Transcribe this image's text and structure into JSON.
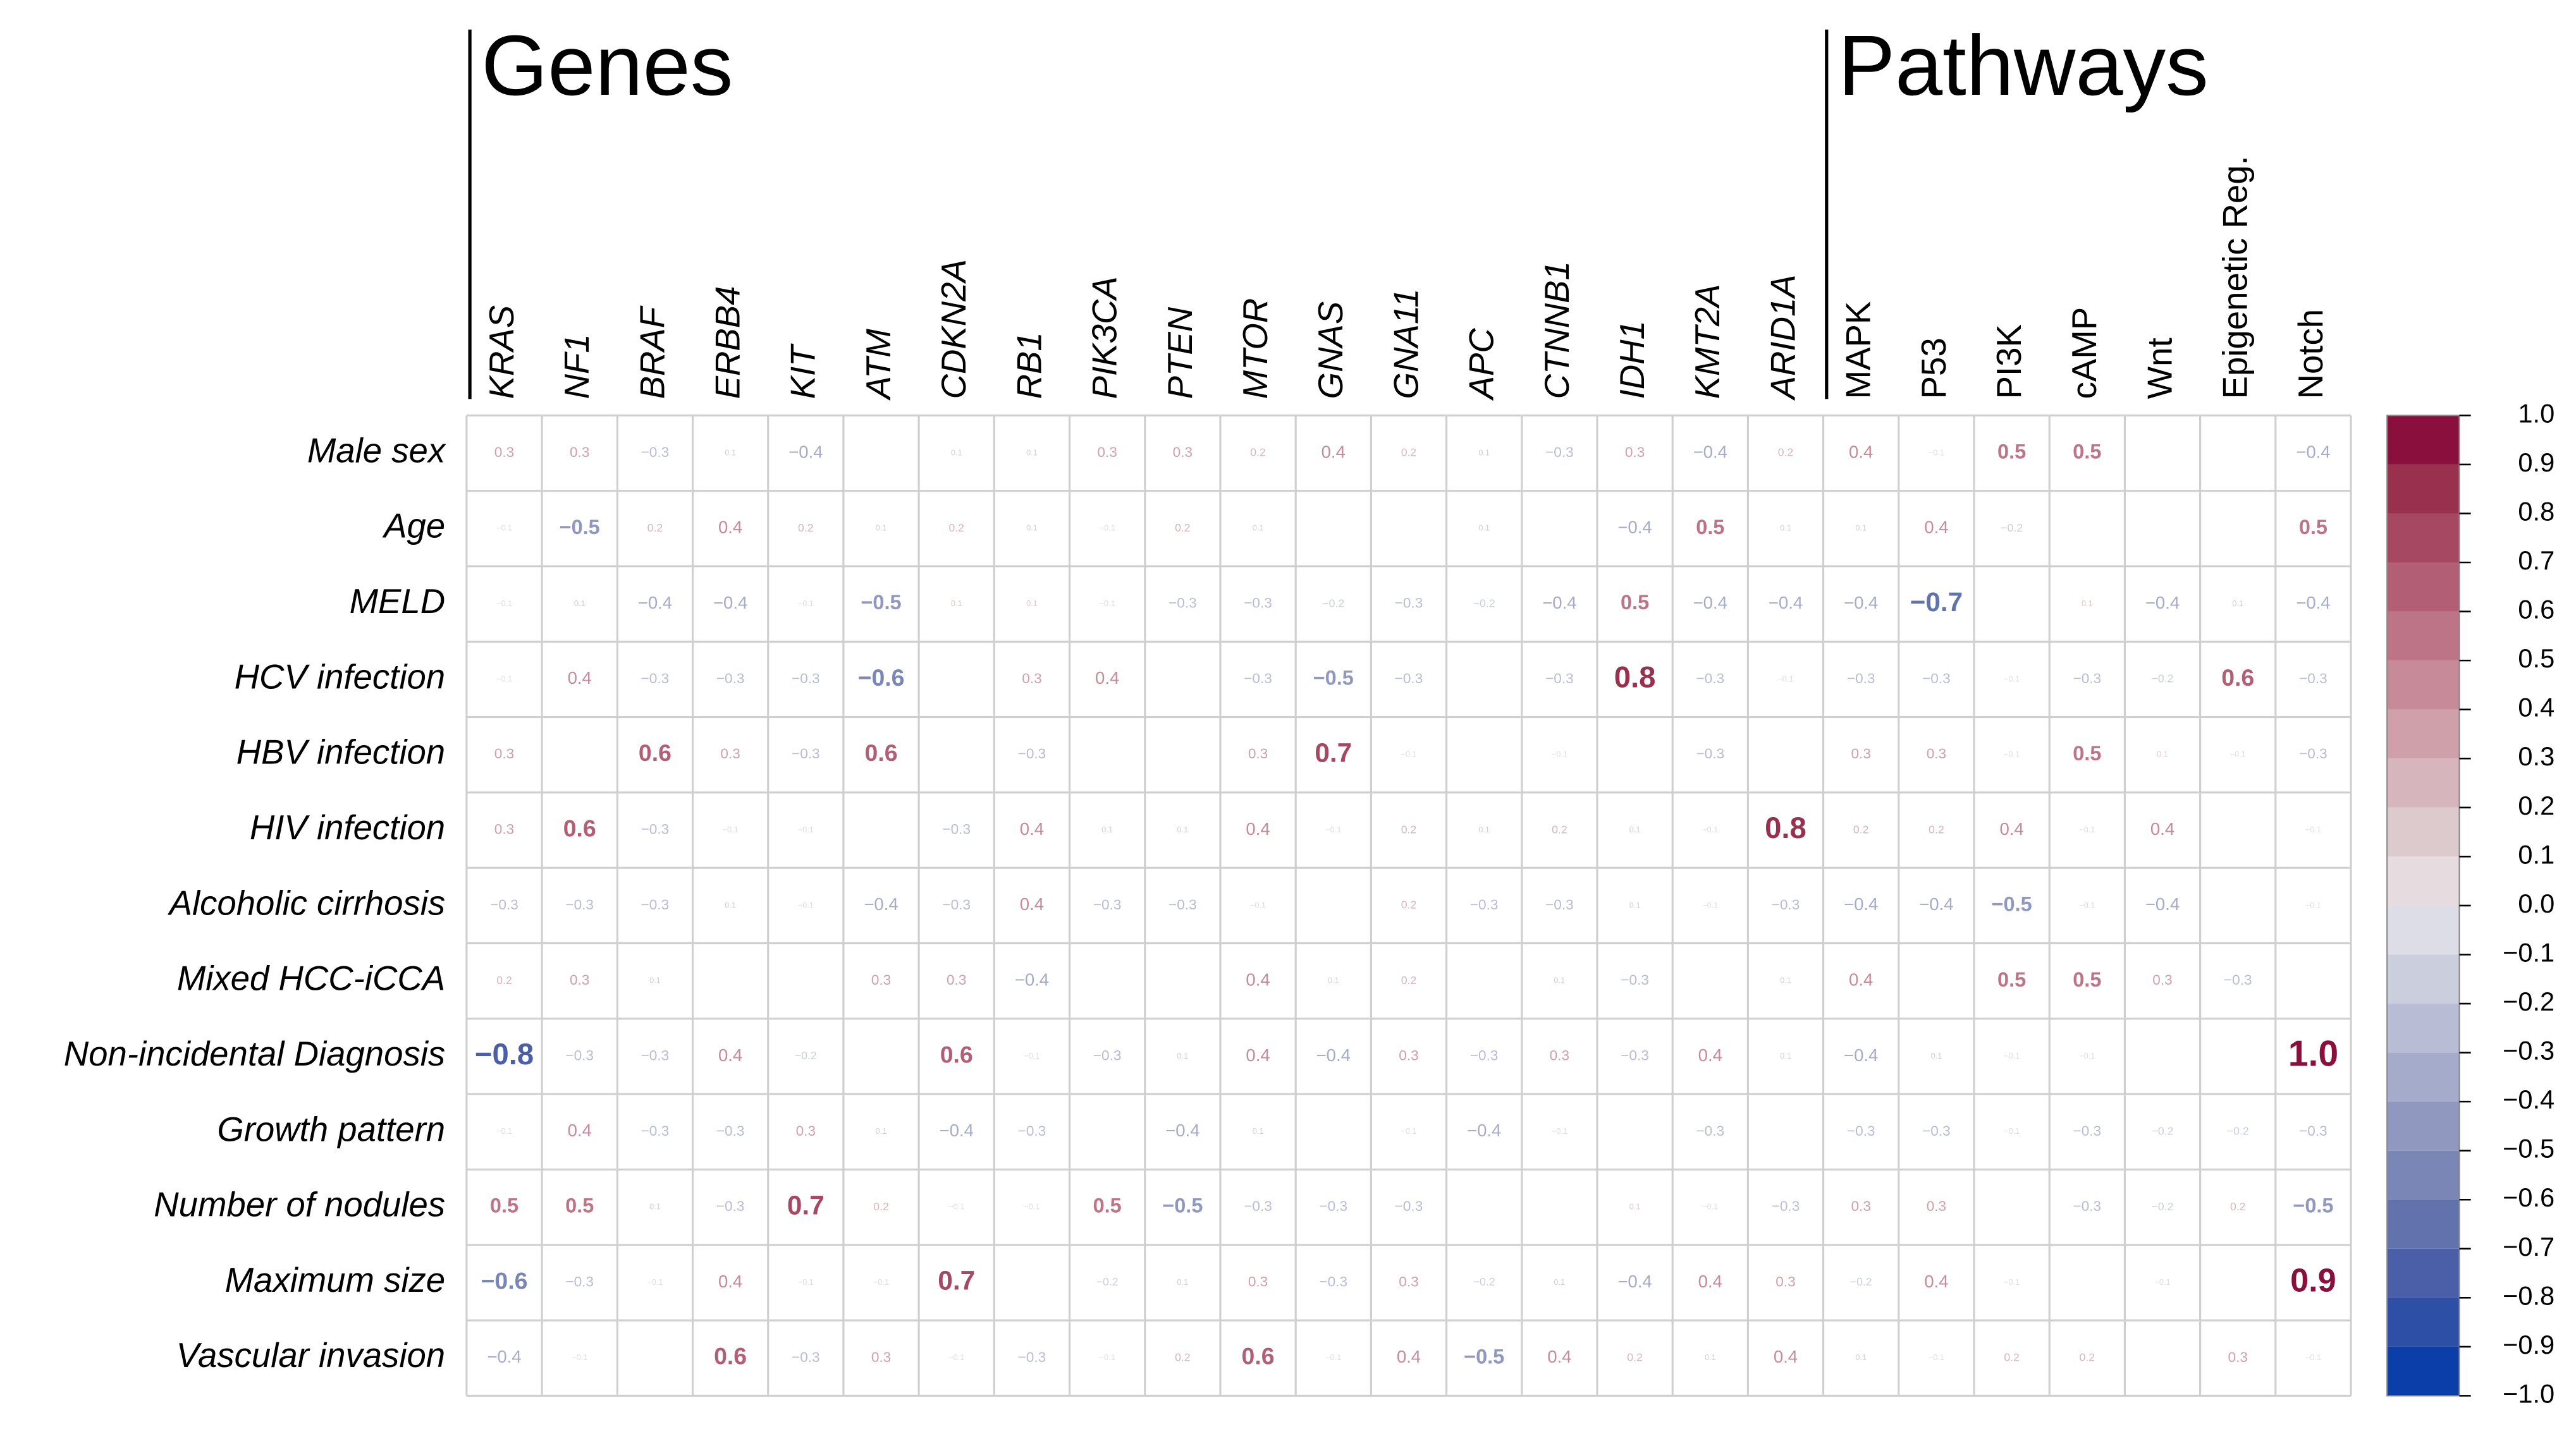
{
  "chart_data": {
    "type": "heatmap",
    "column_groups": [
      {
        "name": "Genes",
        "columns": [
          "KRAS",
          "NF1",
          "BRAF",
          "ERBB4",
          "KIT",
          "ATM",
          "CDKN2A",
          "RB1",
          "PIK3CA",
          "PTEN",
          "MTOR",
          "GNAS",
          "GNA11",
          "APC",
          "CTNNB1",
          "IDH1",
          "KMT2A",
          "ARID1A"
        ]
      },
      {
        "name": "Pathways",
        "columns": [
          "MAPK",
          "P53",
          "PI3K",
          "cAMP",
          "Wnt",
          "Epigenetic Reg.",
          "Notch"
        ]
      }
    ],
    "rows": [
      {
        "label": "Male sex",
        "values": [
          0.3,
          0.3,
          -0.3,
          0.1,
          -0.4,
          null,
          0.1,
          0.1,
          0.3,
          0.3,
          0.2,
          0.4,
          0.2,
          0.1,
          -0.3,
          0.3,
          -0.4,
          0.2,
          0.4,
          -0.1,
          0.5,
          0.5,
          null,
          null,
          -0.4
        ],
        "value_labels": [
          "0.3",
          "0.3",
          "−0.3",
          "0.1",
          "−0.4",
          null,
          "0.1",
          "0.1",
          "0.3",
          "0.3",
          "0.2",
          "0.4",
          "0.2",
          "0.1",
          "−0.3",
          "0.3",
          "−0.4",
          "0.2",
          "0.4",
          "−0.1",
          "0.5",
          "0.5",
          null,
          null,
          "−0.4"
        ]
      },
      {
        "label": "Age",
        "values": [
          -0.1,
          -0.5,
          0.2,
          0.4,
          0.2,
          0.1,
          0.2,
          0.1,
          -0.1,
          0.2,
          0.1,
          null,
          null,
          0.1,
          null,
          -0.4,
          0.5,
          0.1,
          0.1,
          0.4,
          -0.2,
          null,
          null,
          null,
          0.5
        ],
        "value_labels": [
          "−0.1",
          "−0.5",
          "0.2",
          "0.4",
          "0.2",
          "0.1",
          "0.2",
          "0.1",
          "−0.1",
          "0.2",
          "0.1",
          null,
          null,
          "0.1",
          null,
          "−0.4",
          "0.5",
          "0.1",
          "0.1",
          "0.4",
          "−0.2",
          null,
          null,
          null,
          "0.5"
        ]
      },
      {
        "label": "MELD",
        "values": [
          -0.1,
          0.1,
          -0.4,
          -0.4,
          -0.1,
          -0.5,
          0.1,
          0.1,
          -0.1,
          -0.3,
          -0.3,
          -0.2,
          -0.3,
          -0.2,
          -0.4,
          0.5,
          -0.4,
          -0.4,
          -0.4,
          -0.7,
          null,
          0.1,
          -0.4,
          0.1,
          -0.4
        ],
        "value_labels": [
          "−0.1",
          "0.1",
          "−0.4",
          "−0.4",
          "−0.1",
          "−0.5",
          "0.1",
          "0.1",
          "−0.1",
          "−0.3",
          "−0.3",
          "−0.2",
          "−0.3",
          "−0.2",
          "−0.4",
          "0.5",
          "−0.4",
          "−0.4",
          "−0.4",
          "−0.7",
          null,
          "0.1",
          "−0.4",
          "0.1",
          "−0.4"
        ]
      },
      {
        "label": "HCV infection",
        "values": [
          -0.1,
          0.4,
          -0.3,
          -0.3,
          -0.3,
          -0.6,
          null,
          0.3,
          0.4,
          null,
          -0.3,
          -0.5,
          -0.3,
          null,
          -0.3,
          0.8,
          -0.3,
          -0.1,
          -0.3,
          -0.3,
          -0.1,
          -0.3,
          -0.2,
          0.6,
          -0.3
        ],
        "value_labels": [
          "−0.1",
          "0.4",
          "−0.3",
          "−0.3",
          "−0.3",
          "−0.6",
          null,
          "0.3",
          "0.4",
          null,
          "−0.3",
          "−0.5",
          "−0.3",
          null,
          "−0.3",
          "0.8",
          "−0.3",
          "−0.1",
          "−0.3",
          "−0.3",
          "−0.1",
          "−0.3",
          "−0.2",
          "0.6",
          "−0.3"
        ]
      },
      {
        "label": "HBV infection",
        "values": [
          0.3,
          null,
          0.6,
          0.3,
          -0.3,
          0.6,
          null,
          -0.3,
          null,
          null,
          0.3,
          0.7,
          -0.1,
          null,
          -0.1,
          null,
          -0.3,
          null,
          0.3,
          0.3,
          -0.1,
          0.5,
          0.1,
          -0.1,
          -0.3
        ],
        "value_labels": [
          "0.3",
          null,
          "0.6",
          "0.3",
          "−0.3",
          "0.6",
          null,
          "−0.3",
          null,
          null,
          "0.3",
          "0.7",
          "−0.1",
          null,
          "−0.1",
          null,
          "−0.3",
          null,
          "0.3",
          "0.3",
          "−0.1",
          "0.5",
          "0.1",
          "−0.1",
          "−0.3"
        ]
      },
      {
        "label": "HIV infection",
        "values": [
          0.3,
          0.6,
          -0.3,
          -0.1,
          -0.1,
          null,
          -0.3,
          0.4,
          0.1,
          0.1,
          0.4,
          -0.1,
          0.2,
          0.1,
          0.2,
          0.1,
          -0.1,
          0.8,
          0.2,
          0.2,
          0.4,
          -0.1,
          0.4,
          null,
          -0.1
        ],
        "value_labels": [
          "0.3",
          "0.6",
          "−0.3",
          "−0.1",
          "−0.1",
          null,
          "−0.3",
          "0.4",
          "0.1",
          "0.1",
          "0.4",
          "−0.1",
          "0.2",
          "0.1",
          "0.2",
          "0.1",
          "−0.1",
          "0.8",
          "0.2",
          "0.2",
          "0.4",
          "−0.1",
          "0.4",
          null,
          "−0.1"
        ]
      },
      {
        "label": "Alcoholic cirrhosis",
        "values": [
          -0.3,
          -0.3,
          -0.3,
          0.1,
          -0.1,
          -0.4,
          -0.3,
          0.4,
          -0.3,
          -0.3,
          -0.1,
          null,
          0.2,
          -0.3,
          -0.3,
          0.1,
          -0.1,
          -0.3,
          -0.4,
          -0.4,
          -0.5,
          -0.1,
          -0.4,
          null,
          -0.1
        ],
        "value_labels": [
          "−0.3",
          "−0.3",
          "−0.3",
          "0.1",
          "−0.1",
          "−0.4",
          "−0.3",
          "0.4",
          "−0.3",
          "−0.3",
          "−0.1",
          null,
          "0.2",
          "−0.3",
          "−0.3",
          "0.1",
          "−0.1",
          "−0.3",
          "−0.4",
          "−0.4",
          "−0.5",
          "−0.1",
          "−0.4",
          null,
          "−0.1"
        ]
      },
      {
        "label": "Mixed HCC-iCCA",
        "values": [
          0.2,
          0.3,
          0.1,
          null,
          null,
          0.3,
          0.3,
          -0.4,
          null,
          null,
          0.4,
          0.1,
          0.2,
          null,
          0.1,
          -0.3,
          null,
          0.1,
          0.4,
          null,
          0.5,
          0.5,
          0.3,
          -0.3,
          null
        ],
        "value_labels": [
          "0.2",
          "0.3",
          "0.1",
          null,
          null,
          "0.3",
          "0.3",
          "−0.4",
          null,
          null,
          "0.4",
          "0.1",
          "0.2",
          null,
          "0.1",
          "−0.3",
          null,
          "0.1",
          "0.4",
          null,
          "0.5",
          "0.5",
          "0.3",
          "−0.3",
          null
        ]
      },
      {
        "label": "Non-incidental Diagnosis",
        "values": [
          -0.8,
          -0.3,
          -0.3,
          0.4,
          -0.2,
          null,
          0.6,
          -0.1,
          -0.3,
          0.1,
          0.4,
          -0.4,
          0.3,
          -0.3,
          0.3,
          -0.3,
          0.4,
          0.1,
          -0.4,
          0.1,
          -0.1,
          -0.1,
          null,
          null,
          1.0
        ],
        "value_labels": [
          "−0.8",
          "−0.3",
          "−0.3",
          "0.4",
          "−0.2",
          null,
          "0.6",
          "−0.1",
          "−0.3",
          "0.1",
          "0.4",
          "−0.4",
          "0.3",
          "−0.3",
          "0.3",
          "−0.3",
          "0.4",
          "0.1",
          "−0.4",
          "0.1",
          "−0.1",
          "−0.1",
          null,
          null,
          "1.0"
        ]
      },
      {
        "label": "Growth pattern",
        "values": [
          -0.1,
          0.4,
          -0.3,
          -0.3,
          0.3,
          0.1,
          -0.4,
          -0.3,
          null,
          -0.4,
          0.1,
          null,
          -0.1,
          -0.4,
          -0.1,
          null,
          -0.3,
          null,
          -0.3,
          -0.3,
          -0.1,
          -0.3,
          -0.2,
          -0.2,
          -0.3
        ],
        "value_labels": [
          "−0.1",
          "0.4",
          "−0.3",
          "−0.3",
          "0.3",
          "0.1",
          "−0.4",
          "−0.3",
          null,
          "−0.4",
          "0.1",
          null,
          "−0.1",
          "−0.4",
          "−0.1",
          null,
          "−0.3",
          null,
          "−0.3",
          "−0.3",
          "−0.1",
          "−0.3",
          "−0.2",
          "−0.2",
          "−0.3"
        ]
      },
      {
        "label": "Number of nodules",
        "values": [
          0.5,
          0.5,
          0.1,
          -0.3,
          0.7,
          0.2,
          -0.1,
          -0.1,
          0.5,
          -0.5,
          -0.3,
          -0.3,
          -0.3,
          null,
          null,
          0.1,
          -0.1,
          -0.3,
          0.3,
          0.3,
          null,
          -0.3,
          -0.2,
          0.2,
          -0.5
        ],
        "value_labels": [
          "0.5",
          "0.5",
          "0.1",
          "−0.3",
          "0.7",
          "0.2",
          "−0.1",
          "−0.1",
          "0.5",
          "−0.5",
          "−0.3",
          "−0.3",
          "−0.3",
          null,
          null,
          "0.1",
          "−0.1",
          "−0.3",
          "0.3",
          "0.3",
          null,
          "−0.3",
          "−0.2",
          "0.2",
          "−0.5"
        ]
      },
      {
        "label": "Maximum size",
        "values": [
          -0.6,
          -0.3,
          -0.1,
          0.4,
          -0.1,
          -0.1,
          0.7,
          null,
          -0.2,
          0.1,
          0.3,
          -0.3,
          0.3,
          -0.2,
          0.1,
          -0.4,
          0.4,
          0.3,
          -0.2,
          0.4,
          -0.1,
          null,
          -0.1,
          null,
          0.9
        ],
        "value_labels": [
          "−0.6",
          "−0.3",
          "−0.1",
          "0.4",
          "−0.1",
          "−0.1",
          "0.7",
          null,
          "−0.2",
          "0.1",
          "0.3",
          "−0.3",
          "0.3",
          "−0.2",
          "0.1",
          "−0.4",
          "0.4",
          "0.3",
          "−0.2",
          "0.4",
          "−0.1",
          null,
          "−0.1",
          null,
          "0.9"
        ]
      },
      {
        "label": "Vascular invasion",
        "values": [
          -0.4,
          -0.1,
          null,
          0.6,
          -0.3,
          0.3,
          -0.1,
          -0.3,
          -0.1,
          0.2,
          0.6,
          -0.1,
          0.4,
          -0.5,
          0.4,
          0.2,
          0.1,
          0.4,
          0.1,
          -0.1,
          0.2,
          0.2,
          null,
          0.3,
          -0.1
        ],
        "value_labels": [
          "−0.4",
          "−0.1",
          null,
          "0.6",
          "−0.3",
          "0.3",
          "−0.1",
          "−0.3",
          "−0.1",
          "0.2",
          "0.6",
          "−0.1",
          "0.4",
          "−0.5",
          "0.4",
          "0.2",
          "0.1",
          "0.4",
          "0.1",
          "−0.1",
          "0.2",
          "0.2",
          null,
          "0.3",
          "−0.1"
        ]
      }
    ],
    "colorbar": {
      "lim": [
        -1,
        1
      ],
      "ticks": [
        {
          "value": 1,
          "label": "1.0"
        },
        0.9,
        0.8,
        0.7,
        0.6,
        0.5,
        0.4,
        0.3,
        0.2,
        0.1,
        {
          "value": 0,
          "label": "0.0"
        },
        {
          "value": -0.1,
          "label": "−0.1"
        },
        {
          "value": -0.2,
          "label": "−0.2"
        },
        {
          "value": -0.3,
          "label": "−0.3"
        },
        {
          "value": -0.4,
          "label": "−0.4"
        },
        {
          "value": -0.5,
          "label": "−0.5"
        },
        {
          "value": -0.6,
          "label": "−0.6"
        },
        {
          "value": -0.7,
          "label": "−0.7"
        },
        {
          "value": -0.8,
          "label": "−0.8"
        },
        {
          "value": -0.9,
          "label": "−0.9"
        },
        {
          "value": -1,
          "label": "−1.0"
        }
      ],
      "colors": [
        "#0b3ea8",
        "#2e4fa6",
        "#4a5fa8",
        "#6272ad",
        "#7a86b6",
        "#9098c0",
        "#a5abca",
        "#b8bcd4",
        "#cbcedd",
        "#dcdde6",
        "#e6dcdf",
        "#dccacd",
        "#d7b5bc",
        "#cfa0aa",
        "#c68a98",
        "#bd7486",
        "#b25e74",
        "#a64862",
        "#99304e",
        "#8b0f3c"
      ]
    }
  }
}
